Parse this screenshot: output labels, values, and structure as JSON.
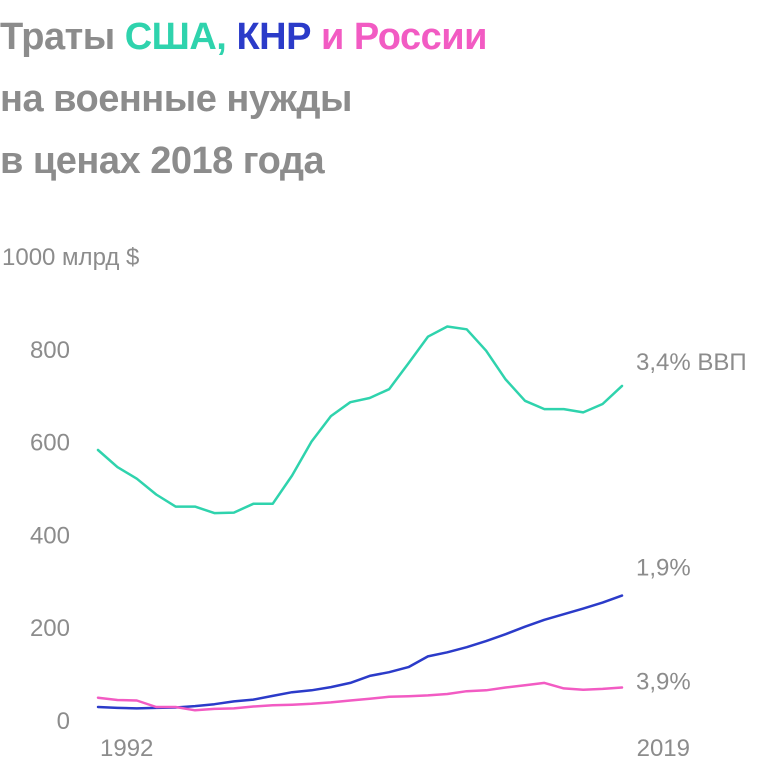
{
  "title": {
    "part1": "Траты ",
    "usa": "США,",
    "sep1": " ",
    "china": "КНР",
    "sep2": " ",
    "russia": "и России",
    "line2": "на военные нужды",
    "line3": "в ценах 2018 года"
  },
  "colors": {
    "usa": "#2fd3ad",
    "china": "#2b3bc9",
    "russia": "#f25bc3",
    "text": "#8c8c8c"
  },
  "chart_data": {
    "type": "line",
    "title": "Траты США, КНР и России на военные нужды в ценах 2018 года",
    "ylabel": "млрд $",
    "ylim": [
      0,
      1000
    ],
    "yticks": [
      {
        "value": 0,
        "label": "0"
      },
      {
        "value": 200,
        "label": "200"
      },
      {
        "value": 400,
        "label": "400"
      },
      {
        "value": 600,
        "label": "600"
      },
      {
        "value": 800,
        "label": "800"
      },
      {
        "value": 1000,
        "label": "1000 млрд $"
      }
    ],
    "xlim": [
      1992,
      2019
    ],
    "xticks": [
      1992,
      2019
    ],
    "x": [
      1992,
      1993,
      1994,
      1995,
      1996,
      1997,
      1998,
      1999,
      2000,
      2001,
      2002,
      2003,
      2004,
      2005,
      2006,
      2007,
      2008,
      2009,
      2010,
      2011,
      2012,
      2013,
      2014,
      2015,
      2016,
      2017,
      2018,
      2019
    ],
    "series": [
      {
        "key": "usa",
        "end_label": "3,4% ВВП",
        "values": [
          582,
          545,
          520,
          486,
          460,
          460,
          446,
          447,
          466,
          466,
          527,
          600,
          655,
          685,
          694,
          713,
          769,
          826,
          848,
          842,
          796,
          734,
          688,
          670,
          670,
          663,
          681,
          720
        ]
      },
      {
        "key": "china",
        "end_label": "1,9%",
        "values": [
          28,
          26,
          25,
          26,
          27,
          30,
          34,
          40,
          44,
          52,
          60,
          64,
          71,
          80,
          95,
          103,
          114,
          137,
          146,
          157,
          170,
          185,
          201,
          216,
          228,
          240,
          253,
          268
        ]
      },
      {
        "key": "russia",
        "end_label": "3,9%",
        "values": [
          48,
          43,
          42,
          28,
          28,
          21,
          24,
          25,
          29,
          32,
          33,
          35,
          38,
          42,
          46,
          50,
          51,
          53,
          56,
          62,
          64,
          70,
          75,
          80,
          68,
          65,
          67,
          70
        ]
      }
    ]
  }
}
